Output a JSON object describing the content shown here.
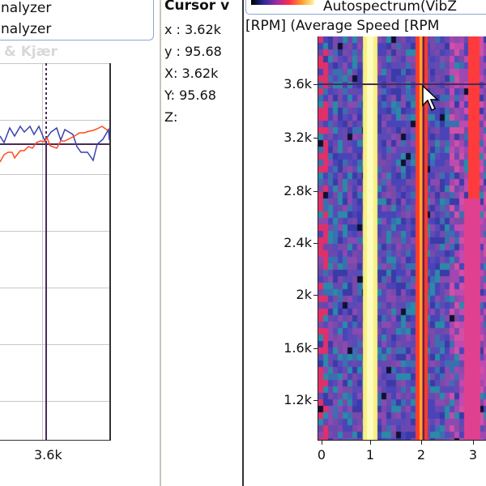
{
  "legend": {
    "items": [
      "nalyzer",
      "nalyzer"
    ],
    "watermark": "& Kjær"
  },
  "left_plot": {
    "x_tick": "3.6k",
    "series_colors": [
      "#3b3fb0",
      "#ff4a1c"
    ],
    "cursor_color": "#4a2a5a"
  },
  "cursor_values": {
    "title": "Cursor v",
    "rows": [
      "x : 3.62k",
      "y : 95.68",
      "X: 3.62k",
      "Y: 95.68",
      "Z:"
    ]
  },
  "spectrogram": {
    "colorbar_label": "Autospectrum(VibZ",
    "axis_title": "[RPM] (Average Speed [RPM",
    "y_ticks": [
      "3.6k",
      "3.2k",
      "2.8k",
      "2.4k",
      "2k",
      "1.6k",
      "1.2k"
    ],
    "x_ticks": [
      "0",
      "1",
      "2",
      "3"
    ],
    "cursor": {
      "x": "3.62k",
      "y": "95.68"
    }
  }
}
